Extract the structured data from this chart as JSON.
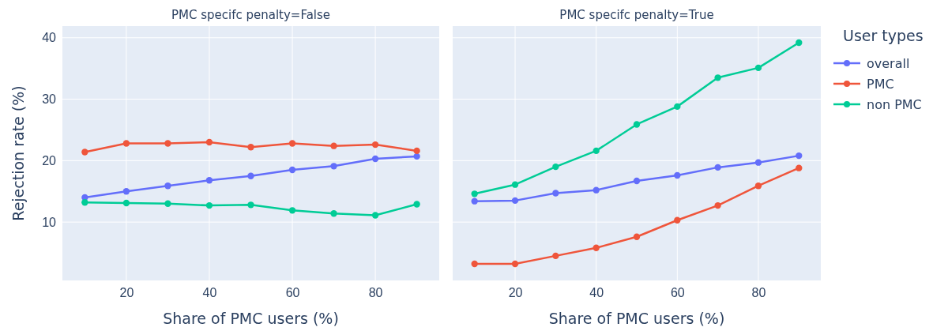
{
  "chart_data": [
    {
      "type": "line",
      "title": "PMC specifc penalty=False",
      "xlabel": "Share of PMC users (%)",
      "ylabel": "Rejection rate (%)",
      "x": [
        10,
        20,
        30,
        40,
        50,
        60,
        70,
        80,
        90
      ],
      "xlim": [
        4.6,
        95.4
      ],
      "xticks": [
        20,
        40,
        60,
        80
      ],
      "ylim": [
        0.5,
        41.9
      ],
      "yticks": [
        10,
        20,
        30,
        40
      ],
      "grid": true,
      "marker": "circle",
      "line_style": "solid",
      "legend": false,
      "series": [
        {
          "color": "#636efa",
          "values": [
            14.0,
            15.0,
            15.9,
            16.8,
            17.5,
            18.5,
            19.1,
            20.3,
            20.7
          ]
        },
        {
          "color": "#ef553b",
          "values": [
            21.4,
            22.8,
            22.8,
            23.0,
            22.2,
            22.8,
            22.4,
            22.6,
            21.6
          ]
        },
        {
          "color": "#00cc96",
          "values": [
            13.2,
            13.1,
            13.0,
            12.7,
            12.8,
            11.9,
            11.4,
            11.1,
            12.9
          ]
        }
      ]
    },
    {
      "type": "line",
      "title": "PMC specifc penalty=True",
      "xlabel": "Share of PMC users (%)",
      "legend_title": "User types",
      "x": [
        10,
        20,
        30,
        40,
        50,
        60,
        70,
        80,
        90
      ],
      "xlim": [
        4.6,
        95.4
      ],
      "xticks": [
        20,
        40,
        60,
        80
      ],
      "ylim": [
        0.5,
        41.9
      ],
      "yticks": [
        10,
        20,
        30,
        40
      ],
      "grid": true,
      "marker": "circle",
      "line_style": "solid",
      "legend": "right",
      "tick_labels": "x",
      "series": [
        {
          "name": "overall",
          "color": "#636efa",
          "values": [
            13.4,
            13.5,
            14.7,
            15.2,
            16.7,
            17.6,
            18.9,
            19.7,
            20.8
          ]
        },
        {
          "name": "PMC",
          "color": "#ef553b",
          "values": [
            3.2,
            3.2,
            4.5,
            5.8,
            7.6,
            10.3,
            12.7,
            15.9,
            18.8
          ]
        },
        {
          "name": "non PMC",
          "color": "#00cc96",
          "values": [
            14.6,
            16.1,
            19.0,
            21.6,
            25.9,
            28.8,
            33.5,
            35.1,
            39.2
          ]
        }
      ]
    }
  ]
}
